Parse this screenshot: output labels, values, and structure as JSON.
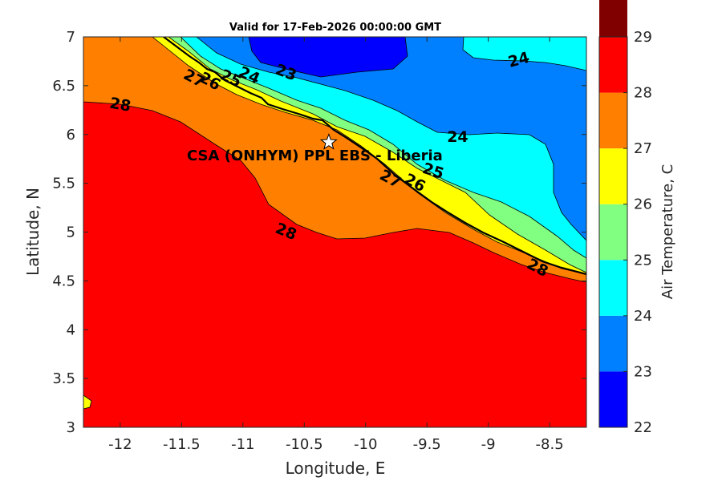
{
  "chart_data": {
    "type": "filled-contour",
    "title": "Valid for 17-Feb-2026 00:00:00 GMT",
    "xlabel": "Longitude, E",
    "ylabel": "Latitude, N",
    "xlim": [
      -12.3,
      -8.2
    ],
    "ylim": [
      3,
      7
    ],
    "xticks": [
      "-12",
      "-11.5",
      "-11",
      "-10.5",
      "-10",
      "-9.5",
      "-9",
      "-8.5"
    ],
    "yticks": [
      "3",
      "3.5",
      "4",
      "4.5",
      "5",
      "5.5",
      "6",
      "6.5",
      "7"
    ],
    "colorbar": {
      "label": "Air Temperature, C",
      "ticks": [
        "22",
        "23",
        "24",
        "25",
        "26",
        "27",
        "28",
        "29"
      ],
      "levels": [
        22,
        23,
        24,
        25,
        26,
        27,
        28,
        29
      ],
      "colors": [
        "#0000ff",
        "#0080ff",
        "#00ffff",
        "#80ff80",
        "#ffff00",
        "#ff8000",
        "#ff0000",
        "#800000"
      ]
    },
    "site": {
      "label": "CSA (ONHYM) PPL EBS  - Liberia",
      "lon": -10.3,
      "lat": 5.92
    },
    "contour_labels": [
      {
        "text": "28",
        "lon": -12.0,
        "lat": 6.3,
        "rot": 10
      },
      {
        "text": "27",
        "lon": -11.4,
        "lat": 6.57,
        "rot": 28
      },
      {
        "text": "26",
        "lon": -11.27,
        "lat": 6.54,
        "rot": 28
      },
      {
        "text": "25",
        "lon": -11.1,
        "lat": 6.57,
        "rot": 25
      },
      {
        "text": "24",
        "lon": -10.95,
        "lat": 6.6,
        "rot": 25
      },
      {
        "text": "23",
        "lon": -10.65,
        "lat": 6.63,
        "rot": 20
      },
      {
        "text": "24",
        "lon": -8.75,
        "lat": 6.76,
        "rot": -15
      },
      {
        "text": "24",
        "lon": -9.25,
        "lat": 5.97,
        "rot": 0
      },
      {
        "text": "25",
        "lon": -9.45,
        "lat": 5.62,
        "rot": 18
      },
      {
        "text": "26",
        "lon": -9.6,
        "lat": 5.5,
        "rot": 28
      },
      {
        "text": "27",
        "lon": -9.8,
        "lat": 5.54,
        "rot": 28
      },
      {
        "text": "28",
        "lon": -10.65,
        "lat": 5.0,
        "rot": 22
      },
      {
        "text": "28",
        "lon": -8.6,
        "lat": 4.63,
        "rot": 28
      }
    ]
  }
}
